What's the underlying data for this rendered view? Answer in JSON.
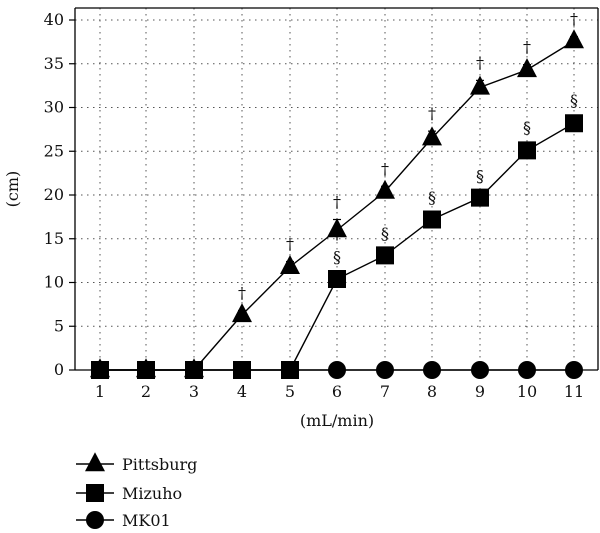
{
  "chart_data": {
    "type": "line",
    "xlabel": "(mL/min)",
    "ylabel": "(cm)",
    "x": [
      1,
      2,
      3,
      4,
      5,
      6,
      7,
      8,
      9,
      10,
      11
    ],
    "x_tick_labels": [
      "1",
      "2",
      "3",
      "4",
      "5",
      "6",
      "7",
      "8",
      "9",
      "10",
      "11"
    ],
    "ylim": [
      0,
      40
    ],
    "y_ticks": [
      0,
      5,
      10,
      15,
      20,
      25,
      30,
      35,
      40
    ],
    "y_tick_labels": [
      "0",
      "5",
      "10",
      "15",
      "20",
      "25",
      "30",
      "35",
      "40"
    ],
    "grid": "dotted horizontal and vertical",
    "legend_placement": "bottom-left, below plot",
    "series": [
      {
        "name": "Pittsburg",
        "marker": "triangle",
        "values": [
          0,
          0,
          0,
          6.3,
          11.8,
          16.0,
          20.4,
          26.5,
          32.3,
          34.3,
          37.6
        ],
        "errors": [
          0,
          0,
          0,
          0.5,
          0.6,
          1.2,
          0.6,
          0.8,
          0.8,
          0.6,
          0.5
        ],
        "annotations": [
          "",
          "",
          "",
          "†",
          "†",
          "†",
          "†",
          "†",
          "†",
          "†",
          "†"
        ]
      },
      {
        "name": "Mizuho",
        "marker": "square",
        "values": [
          0,
          0,
          0,
          0,
          0,
          10.4,
          13.1,
          17.2,
          19.7,
          25.1,
          28.2
        ],
        "errors": [
          0,
          0,
          0,
          0,
          0,
          0.5,
          0.5,
          0.5,
          0.5,
          0.6,
          0.6
        ],
        "annotations": [
          "",
          "",
          "",
          "",
          "",
          "§",
          "§",
          "§",
          "§",
          "§",
          "§"
        ]
      },
      {
        "name": "MK01",
        "marker": "circle",
        "values": [
          0,
          0,
          0,
          0,
          0,
          0,
          0,
          0,
          0,
          0,
          0
        ],
        "errors": [
          0,
          0,
          0,
          0,
          0,
          0,
          0,
          0,
          0,
          0,
          0
        ],
        "annotations": [
          "",
          "",
          "",
          "",
          "",
          "",
          "",
          "",
          "",
          "",
          ""
        ]
      }
    ]
  }
}
